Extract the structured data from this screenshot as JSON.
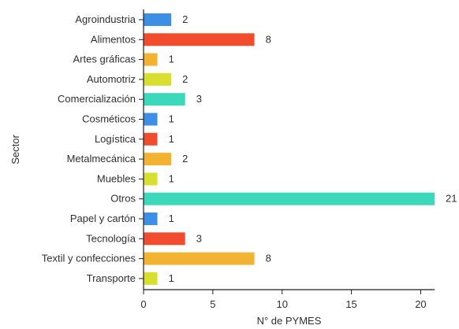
{
  "chart_data": {
    "type": "bar",
    "orientation": "horizontal",
    "title": "",
    "xlabel": "N° de PYMES",
    "ylabel": "Sector",
    "xlim": [
      0,
      21
    ],
    "xticks": [
      0,
      5,
      10,
      15,
      20
    ],
    "grid": false,
    "categories": [
      "Agroindustria",
      "Alimentos",
      "Artes gráficas",
      "Automotriz",
      "Comercialización",
      "Cosméticos",
      "Logística",
      "Metalmecánica",
      "Muebles",
      "Otros",
      "Papel y cartón",
      "Tecnología",
      "Textil y confecciones",
      "Transporte"
    ],
    "values": [
      2,
      8,
      1,
      2,
      3,
      1,
      1,
      2,
      1,
      21,
      1,
      3,
      8,
      1
    ],
    "colors": [
      "#3d8fe6",
      "#f24c2e",
      "#f3b332",
      "#d8df2f",
      "#3bd8bb",
      "#3d8fe6",
      "#f24c2e",
      "#f3b332",
      "#d8df2f",
      "#3bd8bb",
      "#3d8fe6",
      "#f24c2e",
      "#f3b332",
      "#d8df2f"
    ]
  }
}
